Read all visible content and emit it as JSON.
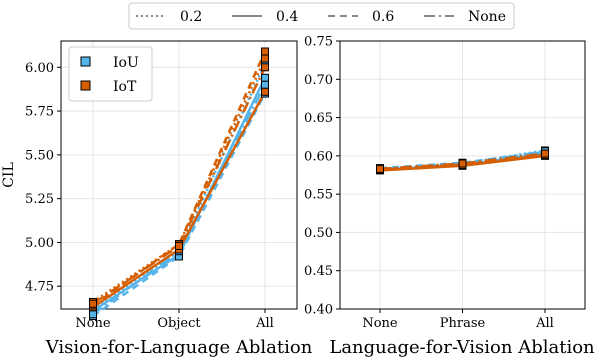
{
  "linestyle_legend": [
    {
      "label": "0.2",
      "dash": "2,3"
    },
    {
      "label": "0.4",
      "dash": ""
    },
    {
      "label": "0.6",
      "dash": "7,5"
    },
    {
      "label": "None",
      "dash": "11,4,2,4"
    }
  ],
  "colors": {
    "IoU": "#56b4e9",
    "IoT": "#d55e00",
    "grid": "#e6e6e6",
    "legend_line": "#888888"
  },
  "chart_data": [
    {
      "type": "line",
      "xlabel": "Vision-for-Language Ablation",
      "ylabel": "CIL",
      "categories": [
        "None",
        "Object",
        "All"
      ],
      "ylim": [
        4.62,
        6.15
      ],
      "yticks": [
        4.75,
        5.0,
        5.25,
        5.5,
        5.75,
        6.0
      ],
      "ytick_labels": [
        "4.75",
        "5.00",
        "5.25",
        "5.50",
        "5.75",
        "6.00"
      ],
      "grid": true,
      "legend": {
        "placement": "top-left",
        "entries": [
          "IoU",
          "IoT"
        ]
      },
      "series": [
        {
          "name": "IoU",
          "style": "0.2",
          "values": [
            4.62,
            4.95,
            6.02
          ]
        },
        {
          "name": "IoU",
          "style": "0.4",
          "values": [
            4.61,
            4.93,
            5.94
          ]
        },
        {
          "name": "IoU",
          "style": "0.6",
          "values": [
            4.58,
            4.92,
            5.85
          ]
        },
        {
          "name": "IoU",
          "style": "None",
          "values": [
            4.59,
            4.95,
            5.9
          ]
        },
        {
          "name": "IoT",
          "style": "0.2",
          "values": [
            4.66,
            4.99,
            6.05
          ]
        },
        {
          "name": "IoT",
          "style": "0.4",
          "values": [
            4.63,
            4.96,
            5.86
          ]
        },
        {
          "name": "IoT",
          "style": "0.6",
          "values": [
            4.64,
            4.99,
            6.09
          ]
        },
        {
          "name": "IoT",
          "style": "None",
          "values": [
            4.65,
            4.98,
            6.0
          ]
        }
      ]
    },
    {
      "type": "line",
      "xlabel": "Language-for-Vision Ablation",
      "ylabel": "",
      "categories": [
        "None",
        "Phrase",
        "All"
      ],
      "ylim": [
        0.4,
        0.75
      ],
      "yticks": [
        0.4,
        0.45,
        0.5,
        0.55,
        0.6,
        0.65,
        0.7,
        0.75
      ],
      "ytick_labels": [
        "0.40",
        "0.45",
        "0.50",
        "0.55",
        "0.60",
        "0.65",
        "0.70",
        "0.75"
      ],
      "grid": true,
      "series": [
        {
          "name": "IoU",
          "style": "0.2",
          "values": [
            0.583,
            0.59,
            0.607
          ]
        },
        {
          "name": "IoU",
          "style": "0.4",
          "values": [
            0.582,
            0.588,
            0.603
          ]
        },
        {
          "name": "IoU",
          "style": "0.6",
          "values": [
            0.584,
            0.591,
            0.605
          ]
        },
        {
          "name": "IoU",
          "style": "None",
          "values": [
            0.583,
            0.589,
            0.606
          ]
        },
        {
          "name": "IoT",
          "style": "0.2",
          "values": [
            0.582,
            0.589,
            0.602
          ]
        },
        {
          "name": "IoT",
          "style": "0.4",
          "values": [
            0.581,
            0.587,
            0.6
          ]
        },
        {
          "name": "IoT",
          "style": "0.6",
          "values": [
            0.582,
            0.588,
            0.601
          ]
        },
        {
          "name": "IoT",
          "style": "None",
          "values": [
            0.583,
            0.59,
            0.603
          ]
        }
      ]
    }
  ]
}
